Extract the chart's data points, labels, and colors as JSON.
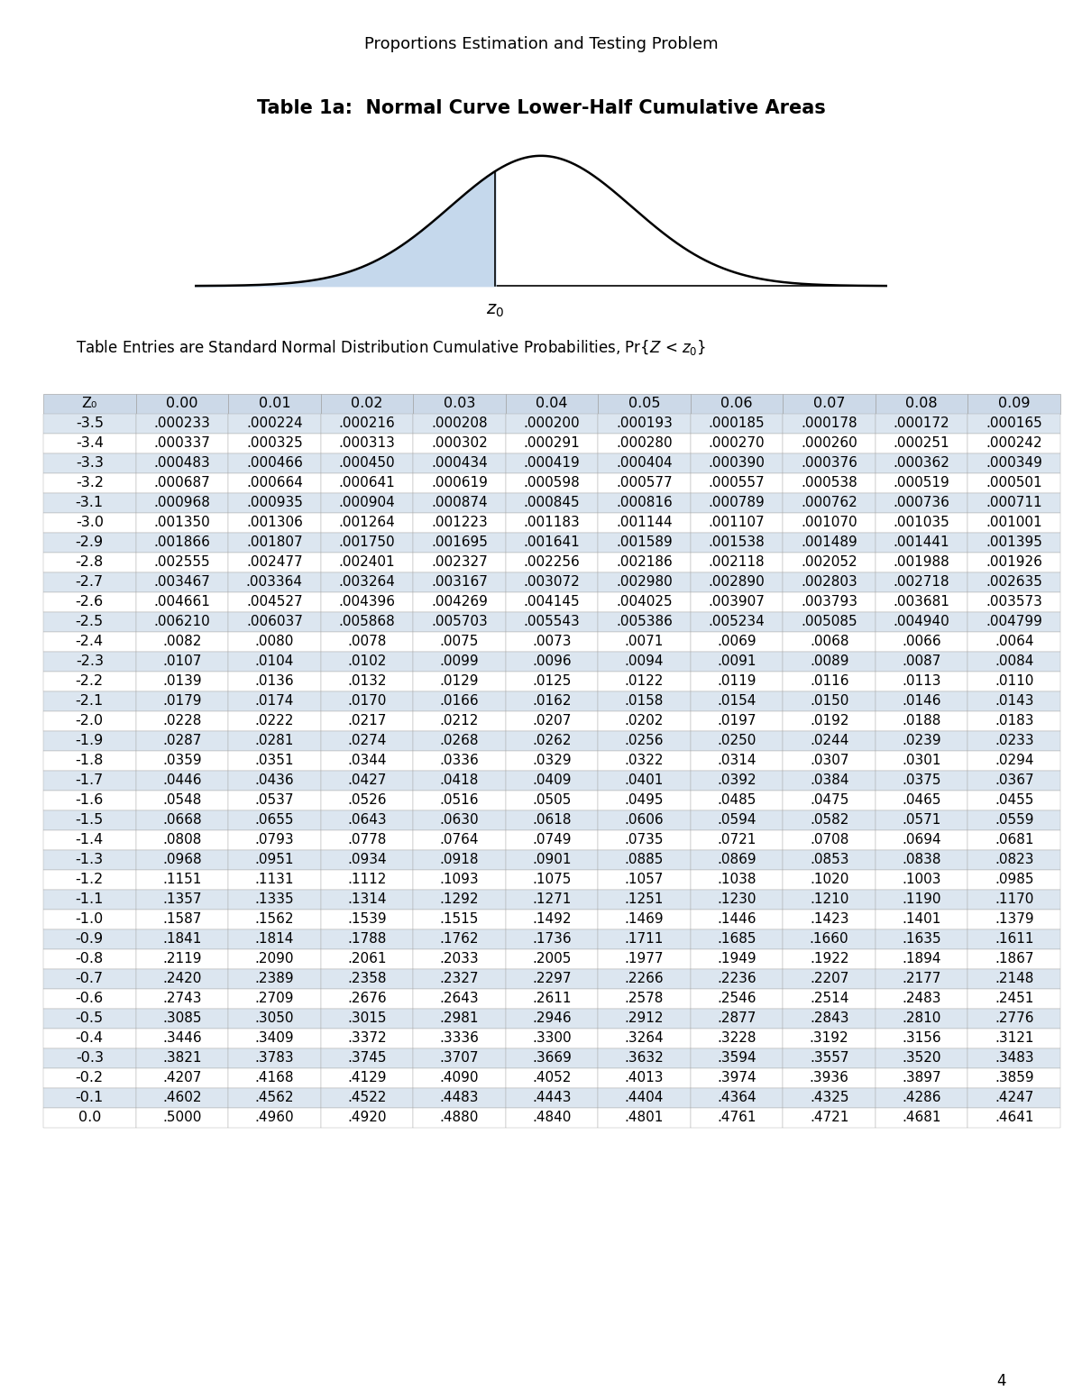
{
  "title": "Proportions Estimation and Testing Problem",
  "table_title": "Table 1a:  Normal Curve Lower-Half Cumulative Areas",
  "page_number": "4",
  "col_headers": [
    "Z₀",
    "0.00",
    "0.01",
    "0.02",
    "0.03",
    "0.04",
    "0.05",
    "0.06",
    "0.07",
    "0.08",
    "0.09"
  ],
  "table_data": [
    [
      "-3.5",
      ".000233",
      ".000224",
      ".000216",
      ".000208",
      ".000200",
      ".000193",
      ".000185",
      ".000178",
      ".000172",
      ".000165"
    ],
    [
      "-3.4",
      ".000337",
      ".000325",
      ".000313",
      ".000302",
      ".000291",
      ".000280",
      ".000270",
      ".000260",
      ".000251",
      ".000242"
    ],
    [
      "-3.3",
      ".000483",
      ".000466",
      ".000450",
      ".000434",
      ".000419",
      ".000404",
      ".000390",
      ".000376",
      ".000362",
      ".000349"
    ],
    [
      "-3.2",
      ".000687",
      ".000664",
      ".000641",
      ".000619",
      ".000598",
      ".000577",
      ".000557",
      ".000538",
      ".000519",
      ".000501"
    ],
    [
      "-3.1",
      ".000968",
      ".000935",
      ".000904",
      ".000874",
      ".000845",
      ".000816",
      ".000789",
      ".000762",
      ".000736",
      ".000711"
    ],
    [
      "-3.0",
      ".001350",
      ".001306",
      ".001264",
      ".001223",
      ".001183",
      ".001144",
      ".001107",
      ".001070",
      ".001035",
      ".001001"
    ],
    [
      "-2.9",
      ".001866",
      ".001807",
      ".001750",
      ".001695",
      ".001641",
      ".001589",
      ".001538",
      ".001489",
      ".001441",
      ".001395"
    ],
    [
      "-2.8",
      ".002555",
      ".002477",
      ".002401",
      ".002327",
      ".002256",
      ".002186",
      ".002118",
      ".002052",
      ".001988",
      ".001926"
    ],
    [
      "-2.7",
      ".003467",
      ".003364",
      ".003264",
      ".003167",
      ".003072",
      ".002980",
      ".002890",
      ".002803",
      ".002718",
      ".002635"
    ],
    [
      "-2.6",
      ".004661",
      ".004527",
      ".004396",
      ".004269",
      ".004145",
      ".004025",
      ".003907",
      ".003793",
      ".003681",
      ".003573"
    ],
    [
      "-2.5",
      ".006210",
      ".006037",
      ".005868",
      ".005703",
      ".005543",
      ".005386",
      ".005234",
      ".005085",
      ".004940",
      ".004799"
    ],
    [
      "-2.4",
      ".0082",
      ".0080",
      ".0078",
      ".0075",
      ".0073",
      ".0071",
      ".0069",
      ".0068",
      ".0066",
      ".0064"
    ],
    [
      "-2.3",
      ".0107",
      ".0104",
      ".0102",
      ".0099",
      ".0096",
      ".0094",
      ".0091",
      ".0089",
      ".0087",
      ".0084"
    ],
    [
      "-2.2",
      ".0139",
      ".0136",
      ".0132",
      ".0129",
      ".0125",
      ".0122",
      ".0119",
      ".0116",
      ".0113",
      ".0110"
    ],
    [
      "-2.1",
      ".0179",
      ".0174",
      ".0170",
      ".0166",
      ".0162",
      ".0158",
      ".0154",
      ".0150",
      ".0146",
      ".0143"
    ],
    [
      "-2.0",
      ".0228",
      ".0222",
      ".0217",
      ".0212",
      ".0207",
      ".0202",
      ".0197",
      ".0192",
      ".0188",
      ".0183"
    ],
    [
      "-1.9",
      ".0287",
      ".0281",
      ".0274",
      ".0268",
      ".0262",
      ".0256",
      ".0250",
      ".0244",
      ".0239",
      ".0233"
    ],
    [
      "-1.8",
      ".0359",
      ".0351",
      ".0344",
      ".0336",
      ".0329",
      ".0322",
      ".0314",
      ".0307",
      ".0301",
      ".0294"
    ],
    [
      "-1.7",
      ".0446",
      ".0436",
      ".0427",
      ".0418",
      ".0409",
      ".0401",
      ".0392",
      ".0384",
      ".0375",
      ".0367"
    ],
    [
      "-1.6",
      ".0548",
      ".0537",
      ".0526",
      ".0516",
      ".0505",
      ".0495",
      ".0485",
      ".0475",
      ".0465",
      ".0455"
    ],
    [
      "-1.5",
      ".0668",
      ".0655",
      ".0643",
      ".0630",
      ".0618",
      ".0606",
      ".0594",
      ".0582",
      ".0571",
      ".0559"
    ],
    [
      "-1.4",
      ".0808",
      ".0793",
      ".0778",
      ".0764",
      ".0749",
      ".0735",
      ".0721",
      ".0708",
      ".0694",
      ".0681"
    ],
    [
      "-1.3",
      ".0968",
      ".0951",
      ".0934",
      ".0918",
      ".0901",
      ".0885",
      ".0869",
      ".0853",
      ".0838",
      ".0823"
    ],
    [
      "-1.2",
      ".1151",
      ".1131",
      ".1112",
      ".1093",
      ".1075",
      ".1057",
      ".1038",
      ".1020",
      ".1003",
      ".0985"
    ],
    [
      "-1.1",
      ".1357",
      ".1335",
      ".1314",
      ".1292",
      ".1271",
      ".1251",
      ".1230",
      ".1210",
      ".1190",
      ".1170"
    ],
    [
      "-1.0",
      ".1587",
      ".1562",
      ".1539",
      ".1515",
      ".1492",
      ".1469",
      ".1446",
      ".1423",
      ".1401",
      ".1379"
    ],
    [
      "-0.9",
      ".1841",
      ".1814",
      ".1788",
      ".1762",
      ".1736",
      ".1711",
      ".1685",
      ".1660",
      ".1635",
      ".1611"
    ],
    [
      "-0.8",
      ".2119",
      ".2090",
      ".2061",
      ".2033",
      ".2005",
      ".1977",
      ".1949",
      ".1922",
      ".1894",
      ".1867"
    ],
    [
      "-0.7",
      ".2420",
      ".2389",
      ".2358",
      ".2327",
      ".2297",
      ".2266",
      ".2236",
      ".2207",
      ".2177",
      ".2148"
    ],
    [
      "-0.6",
      ".2743",
      ".2709",
      ".2676",
      ".2643",
      ".2611",
      ".2578",
      ".2546",
      ".2514",
      ".2483",
      ".2451"
    ],
    [
      "-0.5",
      ".3085",
      ".3050",
      ".3015",
      ".2981",
      ".2946",
      ".2912",
      ".2877",
      ".2843",
      ".2810",
      ".2776"
    ],
    [
      "-0.4",
      ".3446",
      ".3409",
      ".3372",
      ".3336",
      ".3300",
      ".3264",
      ".3228",
      ".3192",
      ".3156",
      ".3121"
    ],
    [
      "-0.3",
      ".3821",
      ".3783",
      ".3745",
      ".3707",
      ".3669",
      ".3632",
      ".3594",
      ".3557",
      ".3520",
      ".3483"
    ],
    [
      "-0.2",
      ".4207",
      ".4168",
      ".4129",
      ".4090",
      ".4052",
      ".4013",
      ".3974",
      ".3936",
      ".3897",
      ".3859"
    ],
    [
      "-0.1",
      ".4602",
      ".4562",
      ".4522",
      ".4483",
      ".4443",
      ".4404",
      ".4364",
      ".4325",
      ".4286",
      ".4247"
    ],
    [
      "0.0",
      ".5000",
      ".4960",
      ".4920",
      ".4880",
      ".4840",
      ".4801",
      ".4761",
      ".4721",
      ".4681",
      ".4641"
    ]
  ],
  "header_bg": "#ccd9e8",
  "row_bg_even": "#dce6f0",
  "row_bg_odd": "#ffffff",
  "text_color": "#000000",
  "background_color": "#ffffff",
  "curve_fill_color": "#c5d8ec",
  "curve_line_color": "#000000"
}
